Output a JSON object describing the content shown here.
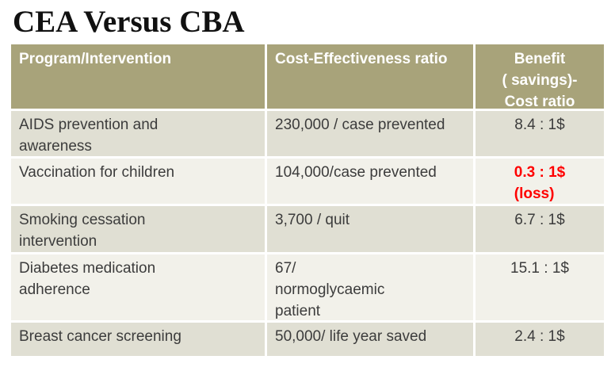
{
  "page": {
    "title": "CEA Versus CBA"
  },
  "colors": {
    "header_bg": "#a8a37a",
    "row_dark": "#e0dfd3",
    "row_light": "#f2f1ea",
    "header_text": "#ffffff",
    "body_text": "#3c3c3c",
    "loss_text": "#ff0000",
    "title_text": "#111111"
  },
  "table": {
    "columns": {
      "program": "Program/Intervention",
      "ce_ratio": "Cost-Effectiveness ratio",
      "bc_ratio": "Benefit\n( savings)-\nCost ratio"
    },
    "rows": [
      {
        "program": "AIDS prevention and\nawareness",
        "ce_ratio": "230,000 / case prevented",
        "bc_ratio": "8.4 : 1$"
      },
      {
        "program": "Vaccination for children",
        "ce_ratio": "104,000/case prevented",
        "bc_ratio": "0.3 : 1$\n(loss)"
      },
      {
        "program": "Smoking cessation\nintervention",
        "ce_ratio": "3,700 / quit",
        "bc_ratio": "6.7 : 1$"
      },
      {
        "program": "Diabetes medication\nadherence",
        "ce_ratio": "67/\nnormoglycaemic\npatient",
        "bc_ratio": "15.1 : 1$"
      },
      {
        "program": "Breast cancer screening",
        "ce_ratio": "50,000/ life year saved",
        "bc_ratio": "2.4 : 1$"
      }
    ]
  }
}
